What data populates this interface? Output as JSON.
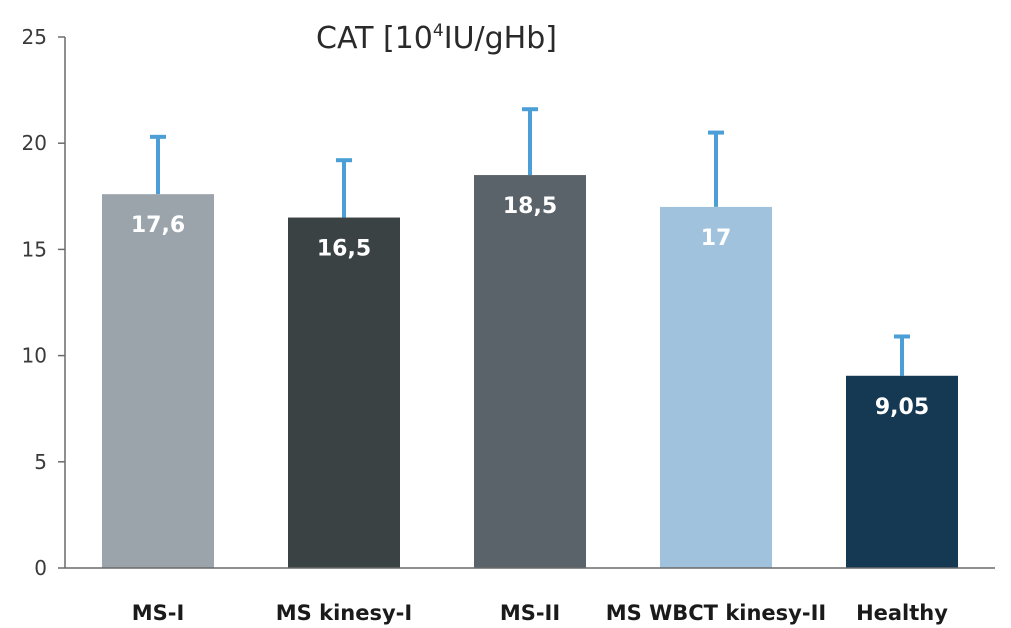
{
  "chart_data": {
    "type": "bar",
    "title_main": "CAT [10",
    "title_sup": "4",
    "title_rest": "IU/gHb]",
    "categories": [
      "MS-I",
      "MS kinesy-I",
      "MS-II",
      "MS WBCT kinesy-II",
      "Healthy"
    ],
    "values": [
      17.6,
      16.5,
      18.5,
      17,
      9.05
    ],
    "value_labels": [
      "17,6",
      "16,5",
      "18,5",
      "17",
      "9,05"
    ],
    "error_upper": [
      20.3,
      19.2,
      21.6,
      20.5,
      10.9
    ],
    "bar_colors": [
      "#9ba3ab",
      "#3a4244",
      "#5a6369",
      "#a1c2dd",
      "#163953"
    ],
    "error_color": "#4b9fd6",
    "ylim": [
      0,
      25
    ],
    "yticks": [
      0,
      5,
      10,
      15,
      20,
      25
    ],
    "xlabel": "",
    "ylabel": "",
    "grid": false,
    "legend": "none"
  }
}
